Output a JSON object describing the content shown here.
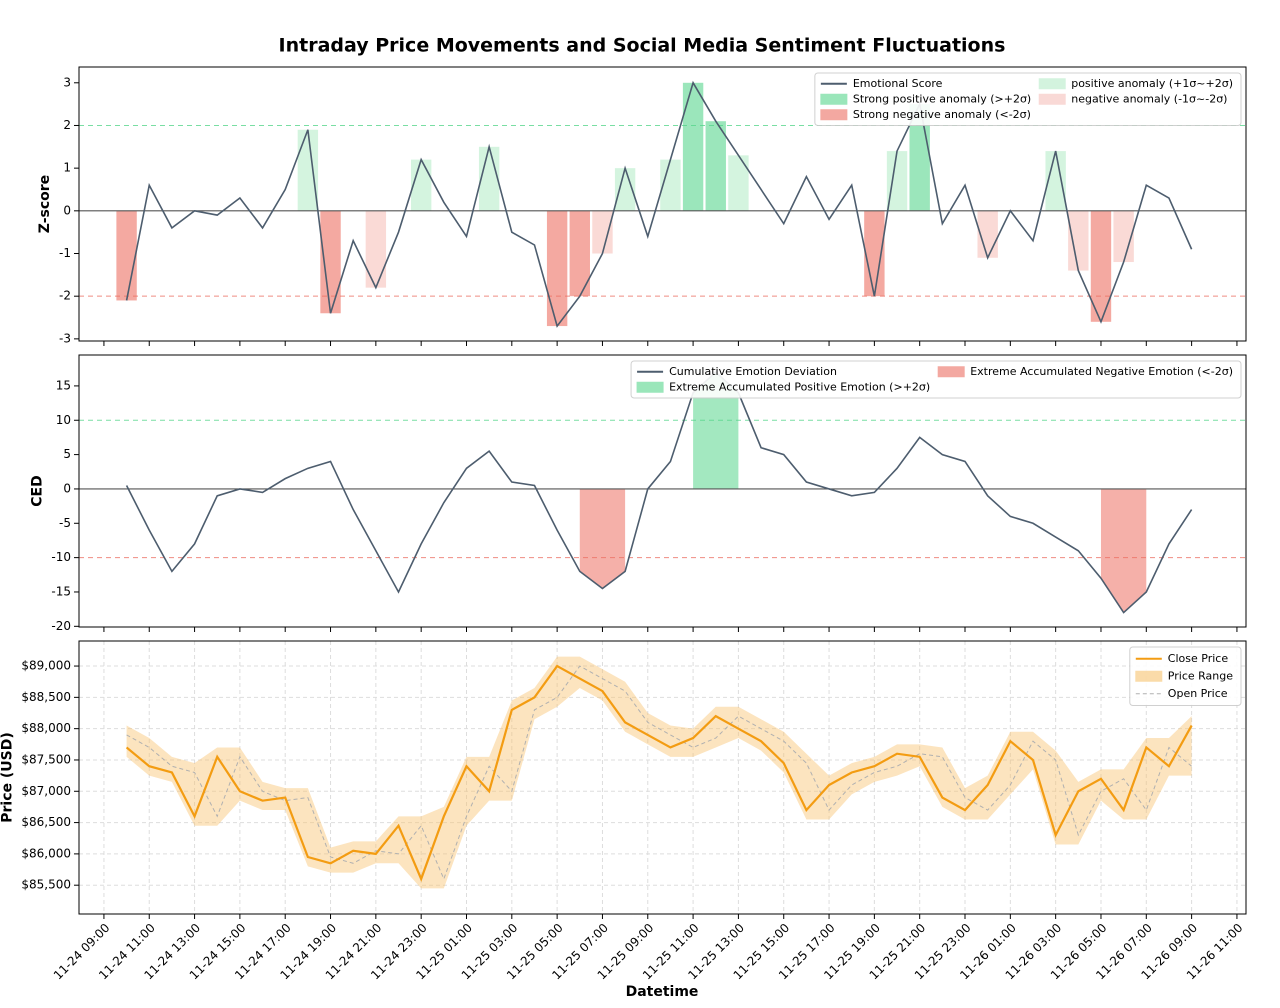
{
  "figure": {
    "title": "Intraday Price Movements and Social Media Sentiment Fluctuations",
    "xlabel": "Datetime",
    "xlim": [
      "11-24 07:54",
      "11-26 11:24"
    ],
    "xticks": [
      "11-24 09:00",
      "11-24 11:00",
      "11-24 13:00",
      "11-24 15:00",
      "11-24 17:00",
      "11-24 19:00",
      "11-24 21:00",
      "11-24 23:00",
      "11-25 01:00",
      "11-25 03:00",
      "11-25 05:00",
      "11-25 07:00",
      "11-25 09:00",
      "11-25 11:00",
      "11-25 13:00",
      "11-25 15:00",
      "11-25 17:00",
      "11-25 19:00",
      "11-25 21:00",
      "11-25 23:00",
      "11-26 01:00",
      "11-26 03:00",
      "11-26 05:00",
      "11-26 07:00",
      "11-26 09:00",
      "11-26 11:00"
    ],
    "x": [
      "11-24 10:00",
      "11-24 11:00",
      "11-24 12:00",
      "11-24 13:00",
      "11-24 14:00",
      "11-24 15:00",
      "11-24 16:00",
      "11-24 17:00",
      "11-24 18:00",
      "11-24 19:00",
      "11-24 20:00",
      "11-24 21:00",
      "11-24 22:00",
      "11-24 23:00",
      "11-25 00:00",
      "11-25 01:00",
      "11-25 02:00",
      "11-25 03:00",
      "11-25 04:00",
      "11-25 05:00",
      "11-25 06:00",
      "11-25 07:00",
      "11-25 08:00",
      "11-25 09:00",
      "11-25 10:00",
      "11-25 11:00",
      "11-25 12:00",
      "11-25 13:00",
      "11-25 14:00",
      "11-25 15:00",
      "11-25 16:00",
      "11-25 17:00",
      "11-25 18:00",
      "11-25 19:00",
      "11-25 20:00",
      "11-25 21:00",
      "11-25 22:00",
      "11-25 23:00",
      "11-26 00:00",
      "11-26 01:00",
      "11-26 02:00",
      "11-26 03:00",
      "11-26 04:00",
      "11-26 05:00",
      "11-26 06:00",
      "11-26 07:00",
      "11-26 08:00",
      "11-26 09:00"
    ]
  },
  "chart_data": [
    {
      "type": "line",
      "ylabel": "Z-score",
      "ylim": [
        -3.05,
        3.37
      ],
      "yticks": [
        -3,
        -2,
        -1,
        0,
        1,
        2,
        3
      ],
      "legend": "upper right",
      "legend_columns": 2,
      "series": [
        {
          "name": "Emotional Score",
          "color": "#4d5d6e",
          "values": [
            -2.1,
            0.6,
            -0.4,
            0.0,
            -0.1,
            0.3,
            -0.4,
            0.5,
            1.9,
            -2.4,
            -0.7,
            -1.8,
            -0.5,
            1.2,
            0.2,
            -0.6,
            1.5,
            -0.5,
            -0.8,
            -2.7,
            -2.0,
            -1.0,
            1.0,
            -0.6,
            1.2,
            3.0,
            2.1,
            1.3,
            0.5,
            -0.3,
            0.8,
            -0.2,
            0.6,
            -2.0,
            1.4,
            2.5,
            -0.3,
            0.6,
            -1.1,
            0.0,
            -0.7,
            1.4,
            -1.4,
            -2.6,
            -1.2,
            0.6,
            0.3,
            -0.9
          ]
        }
      ],
      "anomalies": [
        {
          "name": "Strong positive anomaly (>+2σ)",
          "color": "#58d68d",
          "min": 2
        },
        {
          "name": "Strong negative anomaly (<-2σ)",
          "color": "#ec7063",
          "max": -2
        },
        {
          "name": "positive anomaly (+1σ~+2σ)",
          "color": "#b7ecc9",
          "min": 1
        },
        {
          "name": "negative anomaly (-1σ~-2σ)",
          "color": "#f6c1bb",
          "max": -1
        }
      ],
      "ref_lines": [
        {
          "value": 2,
          "color": "#58d68d"
        },
        {
          "value": -2,
          "color": "#ec7063"
        }
      ]
    },
    {
      "type": "line",
      "ylabel": "CED",
      "ylim": [
        -20.1,
        19.5
      ],
      "yticks": [
        -20,
        -15,
        -10,
        -5,
        0,
        5,
        10,
        15
      ],
      "legend": "upper right",
      "legend_columns": 2,
      "fill": "area",
      "series": [
        {
          "name": "Cumulative Emotion Deviation",
          "color": "#4d5d6e",
          "values": [
            0.5,
            -6,
            -12,
            -8,
            -1,
            0,
            -0.5,
            1.5,
            3,
            4,
            -3,
            -9,
            -15,
            -8,
            -2,
            3,
            5.5,
            1,
            0.5,
            -6,
            -12,
            -14.5,
            -12,
            0,
            4,
            14,
            17,
            14,
            6,
            5,
            1,
            0,
            -1,
            -0.5,
            3,
            7.5,
            5,
            4,
            -1,
            -4,
            -5,
            -7,
            -9,
            -13,
            -18,
            -15,
            -8,
            -3
          ]
        }
      ],
      "anomalies": [
        {
          "name": "Extreme Accumulated Positive Emotion (>+2σ)",
          "color": "#58d68d",
          "min": 10
        },
        {
          "name": "Extreme Accumulated Negative Emotion (<-2σ)",
          "color": "#ec7063",
          "max": -10
        }
      ],
      "ref_lines": [
        {
          "value": 10,
          "color": "#58d68d"
        },
        {
          "value": -10,
          "color": "#ec7063"
        }
      ]
    },
    {
      "type": "line",
      "ylabel": "Price (USD)",
      "ylim": [
        85040,
        89400
      ],
      "grid": true,
      "legend": "upper right",
      "legend_columns": 1,
      "yticks": [
        {
          "value": 85500,
          "label": "$85,500"
        },
        {
          "value": 86000,
          "label": "$86,000"
        },
        {
          "value": 86500,
          "label": "$86,500"
        },
        {
          "value": 87000,
          "label": "$87,000"
        },
        {
          "value": 87500,
          "label": "$87,500"
        },
        {
          "value": 88000,
          "label": "$88,000"
        },
        {
          "value": 88500,
          "label": "$88,500"
        },
        {
          "value": 89000,
          "label": "$89,000"
        }
      ],
      "series": [
        {
          "name": "Close Price",
          "color": "#f39c12",
          "values": [
            87700,
            87400,
            87300,
            86600,
            87550,
            87000,
            86850,
            86900,
            85950,
            85850,
            86050,
            86000,
            86450,
            85600,
            86600,
            87400,
            87000,
            88300,
            88500,
            89000,
            88800,
            88600,
            88100,
            87900,
            87700,
            87850,
            88200,
            88000,
            87800,
            87450,
            86700,
            87100,
            87300,
            87400,
            87600,
            87550,
            86900,
            86700,
            87100,
            87800,
            87500,
            86300,
            87000,
            87200,
            86700,
            87700,
            87400,
            88050
          ]
        },
        {
          "name": "Open Price",
          "color": "#b0b0b0",
          "dash": true,
          "values": [
            87900,
            87700,
            87400,
            87300,
            86600,
            87550,
            87000,
            86850,
            86900,
            85950,
            85850,
            86050,
            86000,
            86450,
            85600,
            86600,
            87400,
            87000,
            88300,
            88500,
            89000,
            88800,
            88600,
            88100,
            87900,
            87700,
            87850,
            88200,
            88000,
            87800,
            87450,
            86700,
            87100,
            87300,
            87400,
            87600,
            87550,
            86900,
            86700,
            87100,
            87800,
            87500,
            86300,
            87000,
            87200,
            86700,
            87700,
            87400
          ]
        }
      ],
      "band": {
        "name": "Price Range",
        "color": "#f8c471",
        "high": [
          88050,
          87850,
          87550,
          87450,
          87700,
          87700,
          87150,
          87050,
          87050,
          86100,
          86200,
          86200,
          86600,
          86600,
          86750,
          87550,
          87550,
          88450,
          88650,
          89150,
          89150,
          88950,
          88750,
          88250,
          88050,
          88000,
          88350,
          88350,
          88150,
          87950,
          87600,
          87250,
          87450,
          87550,
          87750,
          87750,
          87700,
          87050,
          87250,
          87950,
          87950,
          87650,
          87150,
          87350,
          87350,
          87850,
          87850,
          88200
        ],
        "low": [
          87550,
          87250,
          87150,
          86450,
          86450,
          86850,
          86700,
          86700,
          85800,
          85700,
          85700,
          85850,
          85850,
          85450,
          85450,
          86450,
          86850,
          86850,
          88150,
          88350,
          88650,
          88450,
          87950,
          87750,
          87550,
          87550,
          87700,
          87850,
          87650,
          87300,
          86550,
          86550,
          86950,
          87150,
          87250,
          87400,
          86750,
          86550,
          86550,
          86950,
          87350,
          86150,
          86150,
          86850,
          86550,
          86550,
          87250,
          87250
        ]
      }
    }
  ]
}
